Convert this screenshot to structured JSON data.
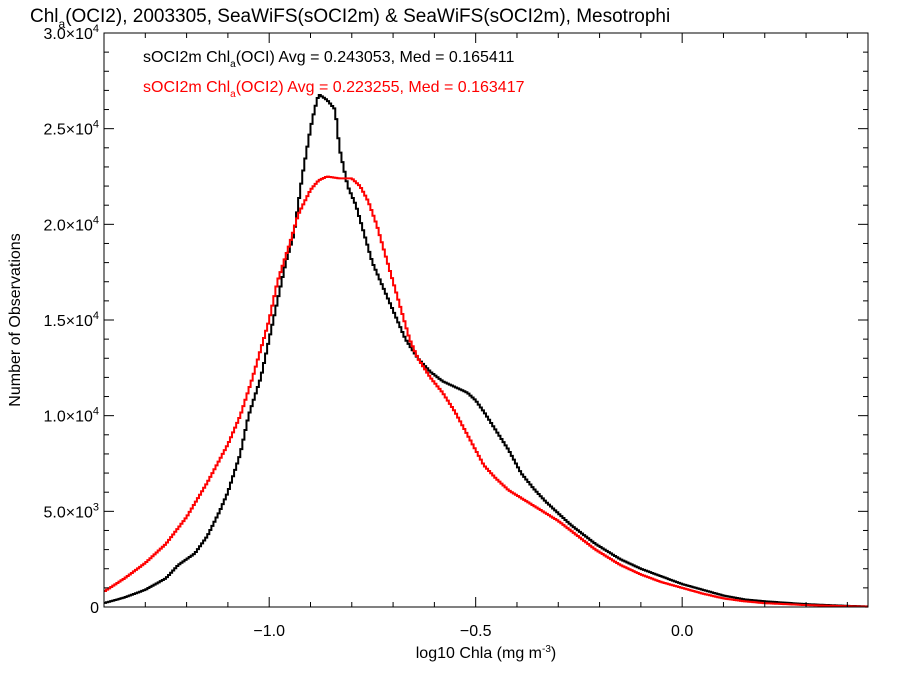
{
  "chart_data": {
    "type": "line",
    "title": {
      "a": "Chl",
      "sub": "a",
      "b": "(OCI2), 2003305, SeaWiFS(sOCI2m) & SeaWiFS(sOCI2m), Mesotrophi"
    },
    "xlabel": {
      "a": "log10 Chla (mg m",
      "sup": "-3",
      "b": ")"
    },
    "ylabel": "Number of Observations",
    "xlim": [
      -1.4,
      0.45
    ],
    "ylim": [
      0,
      30000
    ],
    "x_ticks": [
      {
        "v": -1.0,
        "label": "−1.0"
      },
      {
        "v": -0.5,
        "label": "−0.5"
      },
      {
        "v": 0.0,
        "label": "0.0"
      }
    ],
    "y_ticks": [
      {
        "v": 0,
        "mant": "0",
        "exp": ""
      },
      {
        "v": 5000,
        "mant": "5.0×10",
        "exp": "3"
      },
      {
        "v": 10000,
        "mant": "1.0×10",
        "exp": "4"
      },
      {
        "v": 15000,
        "mant": "1.5×10",
        "exp": "4"
      },
      {
        "v": 20000,
        "mant": "2.0×10",
        "exp": "4"
      },
      {
        "v": 25000,
        "mant": "2.5×10",
        "exp": "4"
      },
      {
        "v": 30000,
        "mant": "3.0×10",
        "exp": "4"
      }
    ],
    "annotations": [
      {
        "pre": "sOCI2m Chl",
        "sub": "a",
        "post": "(OCI) Avg = 0.243053, Med = 0.165411",
        "color": "#000000"
      },
      {
        "pre": "sOCI2m Chl",
        "sub": "a",
        "post": "(OCI2) Avg = 0.223255, Med = 0.163417",
        "color": "#ff0000"
      }
    ],
    "series": [
      {
        "color": "#000000",
        "points": [
          [
            -1.4,
            200
          ],
          [
            -1.35,
            500
          ],
          [
            -1.3,
            900
          ],
          [
            -1.25,
            1500
          ],
          [
            -1.22,
            2200
          ],
          [
            -1.18,
            2800
          ],
          [
            -1.15,
            3700
          ],
          [
            -1.12,
            5000
          ],
          [
            -1.1,
            6000
          ],
          [
            -1.07,
            8000
          ],
          [
            -1.05,
            10000
          ],
          [
            -1.02,
            12000
          ],
          [
            -1.0,
            14000
          ],
          [
            -0.98,
            16000
          ],
          [
            -0.96,
            18000
          ],
          [
            -0.94,
            19500
          ],
          [
            -0.92,
            22500
          ],
          [
            -0.9,
            25000
          ],
          [
            -0.89,
            26000
          ],
          [
            -0.88,
            26800
          ],
          [
            -0.86,
            26500
          ],
          [
            -0.84,
            26000
          ],
          [
            -0.83,
            24000
          ],
          [
            -0.81,
            22000
          ],
          [
            -0.79,
            21000
          ],
          [
            -0.77,
            19500
          ],
          [
            -0.75,
            18000
          ],
          [
            -0.73,
            17000
          ],
          [
            -0.7,
            15500
          ],
          [
            -0.67,
            14000
          ],
          [
            -0.64,
            13000
          ],
          [
            -0.61,
            12300
          ],
          [
            -0.58,
            11800
          ],
          [
            -0.55,
            11500
          ],
          [
            -0.52,
            11200
          ],
          [
            -0.5,
            10800
          ],
          [
            -0.48,
            10200
          ],
          [
            -0.45,
            9200
          ],
          [
            -0.42,
            8200
          ],
          [
            -0.39,
            7000
          ],
          [
            -0.36,
            6200
          ],
          [
            -0.33,
            5500
          ],
          [
            -0.3,
            4900
          ],
          [
            -0.27,
            4300
          ],
          [
            -0.24,
            3800
          ],
          [
            -0.21,
            3300
          ],
          [
            -0.18,
            2900
          ],
          [
            -0.15,
            2500
          ],
          [
            -0.1,
            2000
          ],
          [
            -0.05,
            1600
          ],
          [
            0.0,
            1200
          ],
          [
            0.05,
            900
          ],
          [
            0.1,
            600
          ],
          [
            0.15,
            400
          ],
          [
            0.2,
            300
          ],
          [
            0.3,
            150
          ],
          [
            0.4,
            60
          ],
          [
            0.45,
            30
          ]
        ]
      },
      {
        "color": "#ff0000",
        "points": [
          [
            -1.4,
            800
          ],
          [
            -1.35,
            1500
          ],
          [
            -1.3,
            2300
          ],
          [
            -1.25,
            3300
          ],
          [
            -1.2,
            4700
          ],
          [
            -1.15,
            6500
          ],
          [
            -1.1,
            8500
          ],
          [
            -1.07,
            10000
          ],
          [
            -1.04,
            12000
          ],
          [
            -1.02,
            13500
          ],
          [
            -1.0,
            15000
          ],
          [
            -0.98,
            17000
          ],
          [
            -0.95,
            19000
          ],
          [
            -0.93,
            20500
          ],
          [
            -0.9,
            21800
          ],
          [
            -0.88,
            22300
          ],
          [
            -0.86,
            22500
          ],
          [
            -0.83,
            22400
          ],
          [
            -0.8,
            22400
          ],
          [
            -0.78,
            22000
          ],
          [
            -0.76,
            21200
          ],
          [
            -0.74,
            20000
          ],
          [
            -0.72,
            18500
          ],
          [
            -0.7,
            17000
          ],
          [
            -0.68,
            15500
          ],
          [
            -0.66,
            14000
          ],
          [
            -0.64,
            13000
          ],
          [
            -0.61,
            12000
          ],
          [
            -0.58,
            11200
          ],
          [
            -0.55,
            10200
          ],
          [
            -0.52,
            9000
          ],
          [
            -0.5,
            8200
          ],
          [
            -0.48,
            7400
          ],
          [
            -0.45,
            6700
          ],
          [
            -0.42,
            6100
          ],
          [
            -0.39,
            5700
          ],
          [
            -0.36,
            5300
          ],
          [
            -0.33,
            4900
          ],
          [
            -0.3,
            4500
          ],
          [
            -0.27,
            4000
          ],
          [
            -0.24,
            3500
          ],
          [
            -0.21,
            3000
          ],
          [
            -0.18,
            2600
          ],
          [
            -0.15,
            2200
          ],
          [
            -0.1,
            1700
          ],
          [
            -0.05,
            1300
          ],
          [
            0.0,
            1000
          ],
          [
            0.05,
            700
          ],
          [
            0.1,
            450
          ],
          [
            0.15,
            300
          ],
          [
            0.2,
            200
          ],
          [
            0.3,
            100
          ],
          [
            0.4,
            40
          ],
          [
            0.45,
            20
          ]
        ]
      }
    ]
  }
}
